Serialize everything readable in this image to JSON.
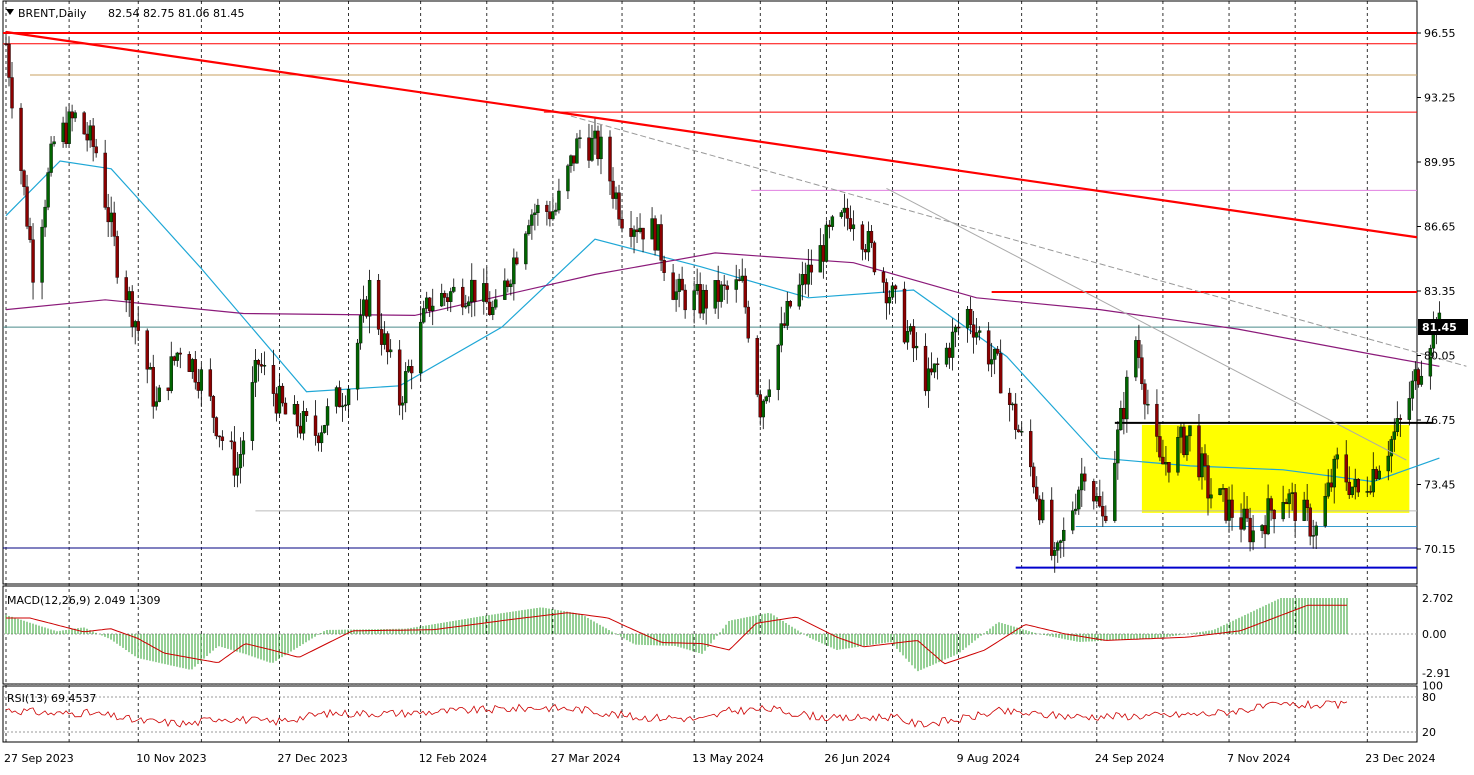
{
  "header": {
    "symbol": "BRENT,Daily",
    "ohlc": "82.54 82.75 81.06 81.45"
  },
  "colors": {
    "up_candle": "#006400",
    "down_candle": "#8b0000",
    "ma_fast": "#1ea7d6",
    "ma_slow": "#8b1a7a",
    "trend_red": "#ff0000",
    "support_blue": "#0000cc",
    "zone_yellow": "#ffff00",
    "macd_hist": "#2ca02c",
    "macd_signal": "#cc0000",
    "rsi_line": "#cc0000",
    "price_tag_bg": "#000000"
  },
  "chart_data": [
    {
      "type": "candlestick",
      "title": "BRENT,Daily",
      "open": 82.54,
      "high": 82.75,
      "low": 81.06,
      "close": 81.45,
      "last_price": "81.45",
      "ylim": [
        68.5,
        97.5
      ],
      "y_tick_labels": [
        "96.55",
        "93.25",
        "89.95",
        "86.65",
        "83.35",
        "80.05",
        "76.75",
        "73.45",
        "70.15"
      ],
      "y_tick_values": [
        96.55,
        93.25,
        89.95,
        86.65,
        83.35,
        80.05,
        76.75,
        73.45,
        70.15
      ],
      "x_tick_labels": [
        "27 Sep 2023",
        "10 Nov 2023",
        "27 Dec 2023",
        "12 Feb 2024",
        "27 Mar 2024",
        "13 May 2024",
        "26 Jun 2024",
        "9 Aug 2024",
        "24 Sep 2024",
        "7 Nov 2024",
        "23 Dec 2024"
      ],
      "grid": true,
      "close_path": [
        [
          "2023-09-27",
          96.0
        ],
        [
          "2023-10-06",
          84.6
        ],
        [
          "2023-10-13",
          90.9
        ],
        [
          "2023-10-20",
          92.2
        ],
        [
          "2023-10-27",
          90.5
        ],
        [
          "2023-11-03",
          84.9
        ],
        [
          "2023-11-10",
          81.4
        ],
        [
          "2023-11-16",
          77.4
        ],
        [
          "2023-11-24",
          80.6
        ],
        [
          "2023-12-01",
          78.9
        ],
        [
          "2023-12-08",
          75.8
        ],
        [
          "2023-12-13",
          74.3
        ],
        [
          "2023-12-20",
          79.7
        ],
        [
          "2023-12-29",
          77.0
        ],
        [
          "2024-01-08",
          76.1
        ],
        [
          "2024-01-19",
          78.6
        ],
        [
          "2024-01-26",
          83.5
        ],
        [
          "2024-02-05",
          77.8
        ],
        [
          "2024-02-15",
          82.8
        ],
        [
          "2024-02-29",
          83.6
        ],
        [
          "2024-03-08",
          82.1
        ],
        [
          "2024-03-19",
          87.4
        ],
        [
          "2024-03-28",
          87.5
        ],
        [
          "2024-04-05",
          91.2
        ],
        [
          "2024-04-12",
          90.5
        ],
        [
          "2024-04-19",
          87.3
        ],
        [
          "2024-04-30",
          86.3
        ],
        [
          "2024-05-07",
          83.2
        ],
        [
          "2024-05-15",
          82.8
        ],
        [
          "2024-05-29",
          83.6
        ],
        [
          "2024-06-04",
          77.5
        ],
        [
          "2024-06-14",
          82.6
        ],
        [
          "2024-06-28",
          86.4
        ],
        [
          "2024-07-05",
          87.4
        ],
        [
          "2024-07-19",
          82.6
        ],
        [
          "2024-07-30",
          78.6
        ],
        [
          "2024-08-12",
          82.3
        ],
        [
          "2024-08-23",
          79.0
        ],
        [
          "2024-09-03",
          73.8
        ],
        [
          "2024-09-10",
          69.2
        ],
        [
          "2024-09-20",
          74.5
        ],
        [
          "2024-09-26",
          71.6
        ],
        [
          "2024-10-07",
          80.9
        ],
        [
          "2024-10-15",
          74.3
        ],
        [
          "2024-10-25",
          76.1
        ],
        [
          "2024-10-31",
          73.2
        ],
        [
          "2024-11-15",
          71.0
        ],
        [
          "2024-11-25",
          73.0
        ],
        [
          "2024-12-06",
          71.1
        ],
        [
          "2024-12-13",
          74.5
        ],
        [
          "2024-12-20",
          72.9
        ],
        [
          "2025-01-03",
          76.5
        ],
        [
          "2025-01-10",
          79.8
        ],
        [
          "2025-01-15",
          82.0
        ],
        [
          "2025-01-16",
          81.45
        ]
      ],
      "series": [
        {
          "name": "",
          "style": "sma-fast",
          "values": [
            [
              "2023-09-27",
              87.2
            ],
            [
              "2023-10-15",
              90.0
            ],
            [
              "2023-11-01",
              89.6
            ],
            [
              "2023-12-01",
              84.5
            ],
            [
              "2024-01-05",
              78.2
            ],
            [
              "2024-02-05",
              78.5
            ],
            [
              "2024-03-10",
              81.5
            ],
            [
              "2024-04-10",
              86.0
            ],
            [
              "2024-05-15",
              84.6
            ],
            [
              "2024-06-20",
              83.0
            ],
            [
              "2024-07-25",
              83.4
            ],
            [
              "2024-08-25",
              80.0
            ],
            [
              "2024-09-25",
              74.8
            ],
            [
              "2024-10-25",
              74.4
            ],
            [
              "2024-11-25",
              74.2
            ],
            [
              "2024-12-25",
              73.6
            ],
            [
              "2025-01-16",
              74.8
            ]
          ]
        },
        {
          "name": "",
          "style": "sma-slow",
          "values": [
            [
              "2023-09-27",
              82.4
            ],
            [
              "2023-10-30",
              82.9
            ],
            [
              "2023-12-15",
              82.2
            ],
            [
              "2024-02-10",
              82.1
            ],
            [
              "2024-04-10",
              84.2
            ],
            [
              "2024-05-20",
              85.3
            ],
            [
              "2024-07-05",
              84.8
            ],
            [
              "2024-08-15",
              83.0
            ],
            [
              "2024-09-25",
              82.4
            ],
            [
              "2024-11-10",
              81.4
            ],
            [
              "2024-12-25",
              80.1
            ],
            [
              "2025-01-16",
              79.5
            ]
          ]
        }
      ],
      "horizontal_levels": [
        96.55,
        92.5,
        83.3,
        88.5,
        76.6,
        71.3,
        70.2,
        69.2,
        72.1,
        81.5
      ],
      "trendline_start": [
        "2023-09-27",
        96.6
      ],
      "trendline_end": [
        "2025-02-10",
        86.1
      ],
      "consolidation_zone": {
        "from": "2024-10-09",
        "to": "2025-01-06",
        "low": 72.0,
        "high": 76.5
      }
    },
    {
      "type": "histogram+line",
      "title": "MACD(12,26,9) 2.049 1.309",
      "y_tick_labels": [
        "2.702",
        "0.00",
        "-2.91"
      ],
      "y_tick_values": [
        2.702,
        0,
        -2.91
      ],
      "ylim": [
        -3.6,
        3.6
      ],
      "macd_value": 2.049,
      "signal_value": 1.309
    },
    {
      "type": "line",
      "title": "RSI(13) 69.4537",
      "y_tick_labels": [
        "100",
        "80",
        "20"
      ],
      "y_tick_values": [
        100,
        80,
        20
      ],
      "ylim": [
        0,
        100
      ],
      "rsi_value": 69.4537
    }
  ]
}
